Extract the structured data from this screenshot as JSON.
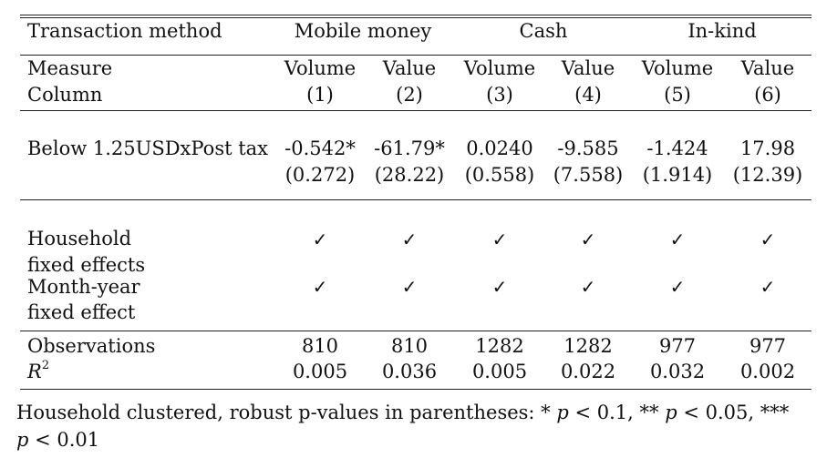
{
  "header": {
    "row1_label": "Transaction method",
    "groups": [
      "Mobile money",
      "Cash",
      "In-kind"
    ],
    "row2_label": "Measure",
    "measures": [
      "Volume",
      "Value",
      "Volume",
      "Value",
      "Volume",
      "Value"
    ],
    "row3_label": "Column",
    "columns": [
      "(1)",
      "(2)",
      "(3)",
      "(4)",
      "(5)",
      "(6)"
    ]
  },
  "coef": {
    "label": "Below 1.25USDxPost tax",
    "estimates": [
      "-0.542*",
      "-61.79*",
      "0.0240",
      "-9.585",
      "-1.424",
      "17.98"
    ],
    "std_errors": [
      "(0.272)",
      "(28.22)",
      "(0.558)",
      "(7.558)",
      "(1.914)",
      "(12.39)"
    ]
  },
  "fixed_effects": {
    "household_line1": "Household",
    "household_line2": "fixed effects",
    "month_line1": "Month-year",
    "month_line2": "fixed effect",
    "check": "✓"
  },
  "stats": {
    "obs_label": "Observations",
    "observations": [
      "810",
      "810",
      "1282",
      "1282",
      "977",
      "977"
    ],
    "r2_label": "R",
    "r2_sup": "2",
    "r2": [
      "0.005",
      "0.036",
      "0.005",
      "0.022",
      "0.032",
      "0.002"
    ]
  },
  "note": {
    "text1": "Household clustered, robust p-values in parentheses: * ",
    "p": "p",
    "t1": " < 0.1, ** ",
    "t2": " < 0.05, ***",
    "t3": " < 0.01"
  }
}
